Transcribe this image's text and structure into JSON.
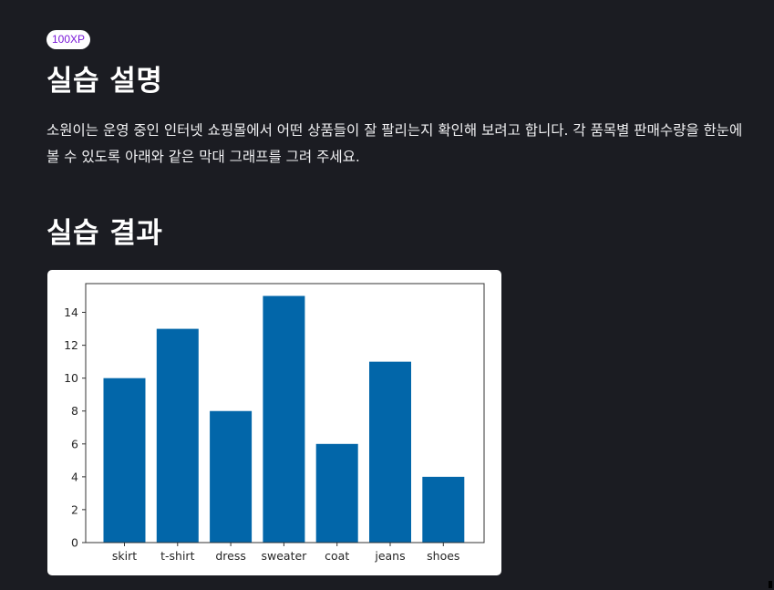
{
  "badge": {
    "label": "100XP"
  },
  "sections": {
    "description": {
      "title": "실습 설명",
      "text": "소원이는 운영 중인 인터넷 쇼핑몰에서 어떤 상품들이 잘 팔리는지 확인해 보려고 합니다. 각 품목별 판매수량을 한눈에 볼 수 있도록 아래와 같은 막대 그래프를 그려 주세요."
    },
    "result": {
      "title": "실습 결과"
    }
  },
  "colors": {
    "background": "#1b1c22",
    "badge_text": "#7a18d8",
    "bar": "#0266a9"
  },
  "chart_data": {
    "type": "bar",
    "categories": [
      "skirt",
      "t-shirt",
      "dress",
      "sweater",
      "coat",
      "jeans",
      "shoes"
    ],
    "values": [
      10,
      13,
      8,
      15,
      6,
      11,
      4
    ],
    "title": "",
    "xlabel": "",
    "ylabel": "",
    "ylim": [
      0,
      15.75
    ],
    "yticks": [
      0,
      2,
      4,
      6,
      8,
      10,
      12,
      14
    ],
    "grid": false
  }
}
